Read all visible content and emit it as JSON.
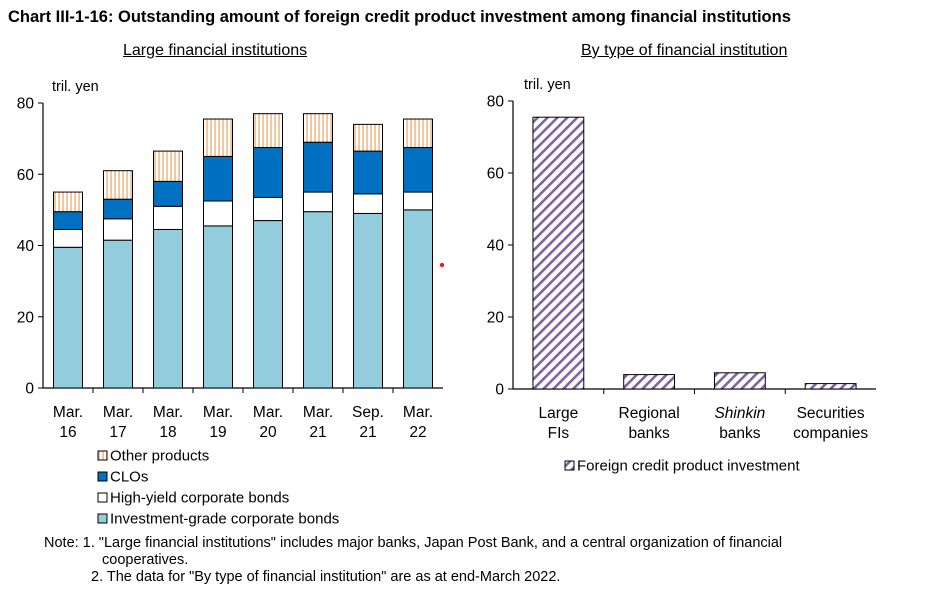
{
  "title": "Chart III-1-16: Outstanding amount of foreign credit product investment among financial institutions",
  "colors": {
    "investment_grade": "#93cddd",
    "high_yield": "#ffffff",
    "clos": "#0070c0",
    "other_fill": "#fac090",
    "other_stripe": "#ffffff",
    "right_fill": "#8064a2",
    "right_stripe": "#ffffff",
    "axis": "#000000",
    "marker": "#e02020"
  },
  "chart_data": [
    {
      "type": "bar",
      "stacked": true,
      "title": "Large financial institutions",
      "unit_label": "tril. yen",
      "categories": [
        [
          "Mar.",
          "16"
        ],
        [
          "Mar.",
          "17"
        ],
        [
          "Mar.",
          "18"
        ],
        [
          "Mar.",
          "19"
        ],
        [
          "Mar.",
          "20"
        ],
        [
          "Mar.",
          "21"
        ],
        [
          "Sep.",
          "21"
        ],
        [
          "Mar.",
          "22"
        ]
      ],
      "series": [
        {
          "name": "Investment-grade corporate bonds",
          "color_key": "investment_grade",
          "pattern": "solid",
          "values": [
            39.5,
            41.5,
            44.5,
            45.5,
            47.0,
            49.5,
            49.0,
            50.0
          ]
        },
        {
          "name": "High-yield corporate bonds",
          "color_key": "high_yield",
          "pattern": "solid",
          "values": [
            5.0,
            6.0,
            6.5,
            7.0,
            6.5,
            5.5,
            5.5,
            5.0
          ]
        },
        {
          "name": "CLOs",
          "color_key": "clos",
          "pattern": "solid",
          "values": [
            5.0,
            5.5,
            7.0,
            12.5,
            14.0,
            14.0,
            12.0,
            12.5
          ]
        },
        {
          "name": "Other products",
          "color_key": "other_fill",
          "pattern": "vertical-stripes",
          "values": [
            5.5,
            8.0,
            8.5,
            10.5,
            9.5,
            8.0,
            7.5,
            8.0
          ]
        }
      ],
      "legend_order": [
        "Other products",
        "CLOs",
        "High-yield corporate bonds",
        "Investment-grade corporate bonds"
      ],
      "legend_position": "bottom-left",
      "ylim": [
        0,
        80
      ],
      "yticks": [
        0,
        20,
        40,
        60,
        80
      ],
      "grid": false
    },
    {
      "type": "bar",
      "title": "By type of financial institution",
      "unit_label": "tril. yen",
      "categories": [
        [
          "Large",
          "FIs"
        ],
        [
          "Regional",
          "banks"
        ],
        [
          "Shinkin",
          "banks"
        ],
        [
          "Securities",
          "companies"
        ]
      ],
      "italic_first_line": [
        false,
        false,
        true,
        false
      ],
      "series": [
        {
          "name": "Foreign credit product investment",
          "color_key": "right_fill",
          "pattern": "diagonal-stripes",
          "values": [
            75.5,
            4.0,
            4.5,
            1.5
          ]
        }
      ],
      "legend_position": "bottom",
      "ylim": [
        0,
        80
      ],
      "yticks": [
        0,
        20,
        40,
        60,
        80
      ],
      "grid": false
    }
  ],
  "notes": {
    "line1": "Note: 1. \"Large financial institutions\" includes major banks, Japan Post Bank, and a central organization of financial",
    "line1_cont": "cooperatives.",
    "line2": "2. The data for \"By type of financial institution\" are as at end-March 2022."
  }
}
